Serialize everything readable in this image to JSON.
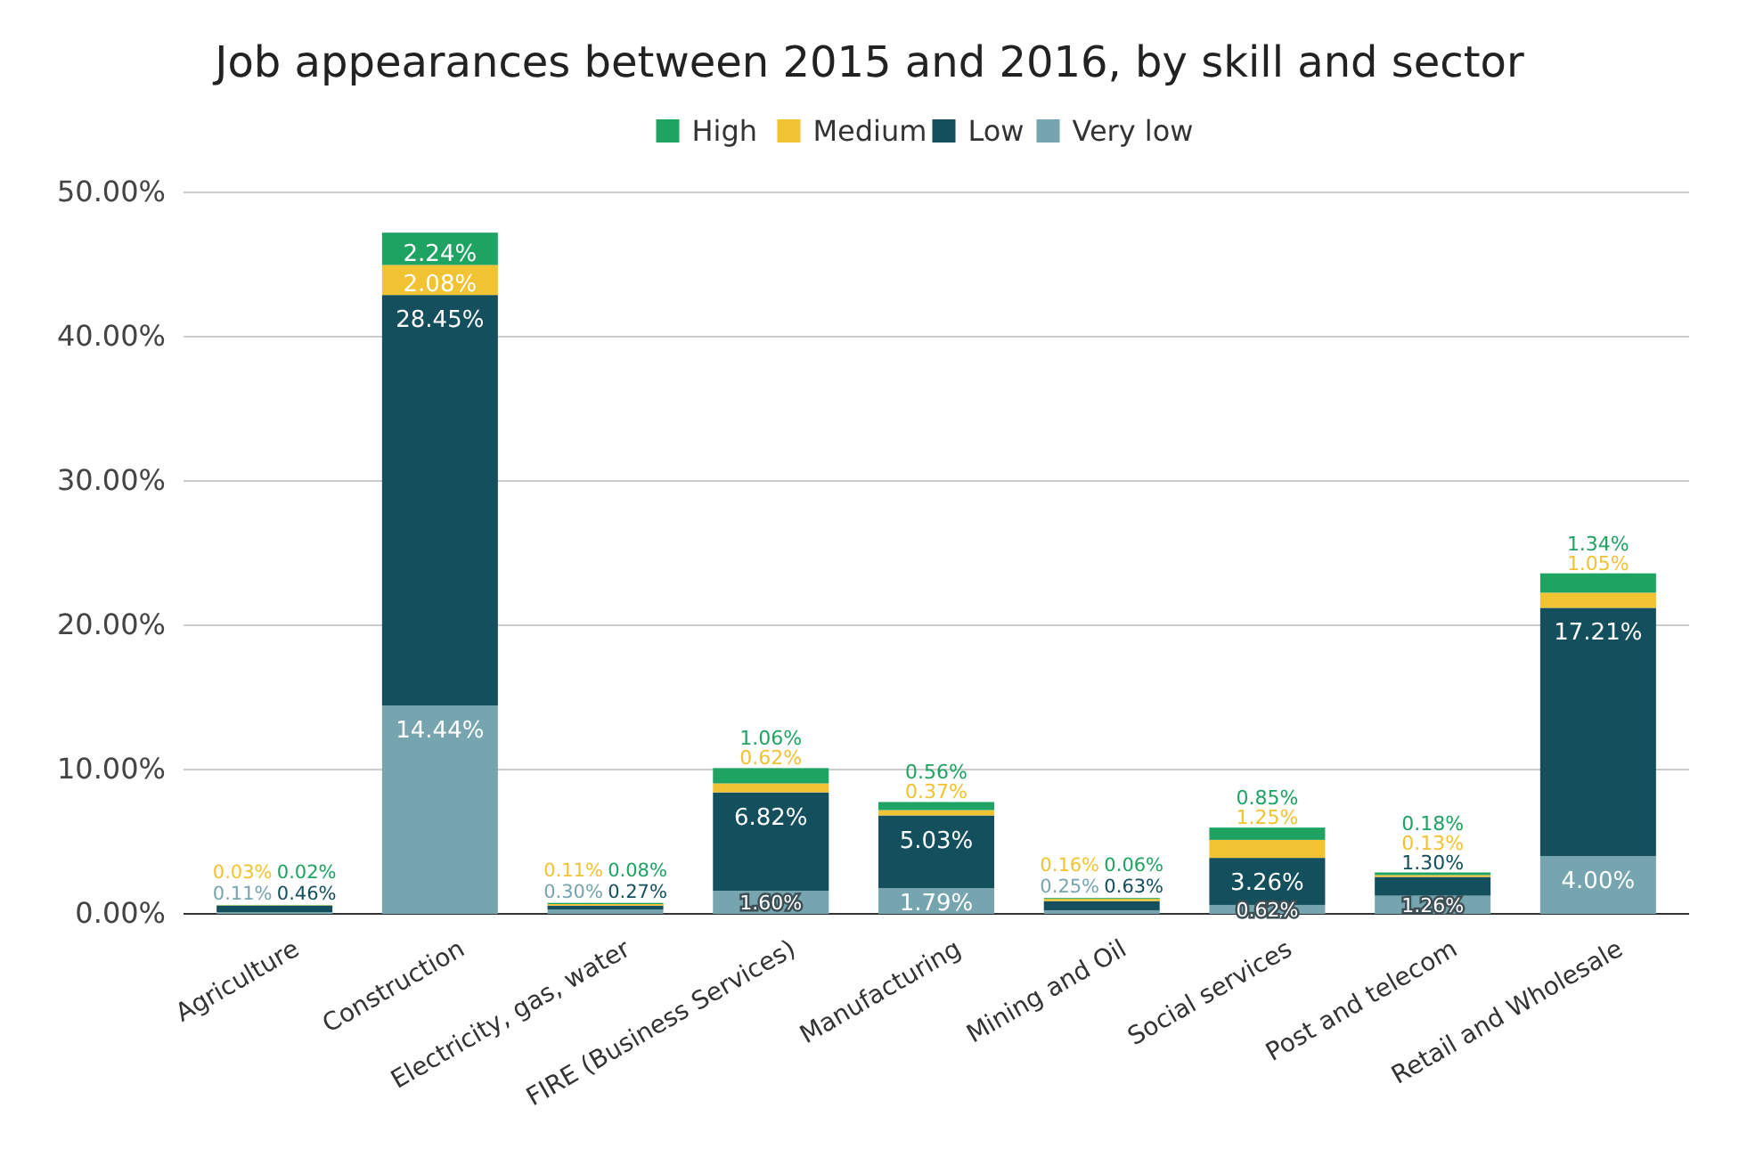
{
  "chart_data": {
    "type": "bar",
    "stacked": true,
    "title": "Job appearances between 2015 and 2016, by skill and sector",
    "categories": [
      "Agriculture",
      "Construction",
      "Electricity, gas, water",
      "FIRE (Business Services)",
      "Manufacturing",
      "Mining and Oil",
      "Social services",
      "Post and telecom",
      "Retail and Wholesale"
    ],
    "series": [
      {
        "name": "Very low",
        "color": "#76a5af",
        "values": [
          0.11,
          14.44,
          0.3,
          1.6,
          1.79,
          0.25,
          0.62,
          1.26,
          4.0
        ],
        "value_labels": [
          "0.11%",
          "14.44%",
          "0.30%",
          "1.60%",
          "1.79%",
          "0.25%",
          "0.62%",
          "1.26%",
          "4.00%"
        ]
      },
      {
        "name": "Low",
        "color": "#134f5c",
        "values": [
          0.46,
          28.45,
          0.27,
          6.82,
          5.03,
          0.63,
          3.26,
          1.3,
          17.21
        ],
        "value_labels": [
          "0.46%",
          "28.45%",
          "0.27%",
          "6.82%",
          "5.03%",
          "0.63%",
          "3.26%",
          "1.30%",
          "17.21%"
        ]
      },
      {
        "name": "Medium",
        "color": "#f1c232",
        "values": [
          0.03,
          2.08,
          0.11,
          0.62,
          0.37,
          0.16,
          1.25,
          0.13,
          1.05
        ],
        "value_labels": [
          "0.03%",
          "2.08%",
          "0.11%",
          "0.62%",
          "0.37%",
          "0.16%",
          "1.25%",
          "0.13%",
          "1.05%"
        ]
      },
      {
        "name": "High",
        "color": "#1ea362",
        "values": [
          0.02,
          2.24,
          0.08,
          1.06,
          0.56,
          0.06,
          0.85,
          0.18,
          1.34
        ],
        "value_labels": [
          "0.02%",
          "2.24%",
          "0.08%",
          "1.06%",
          "0.56%",
          "0.06%",
          "0.85%",
          "0.18%",
          "1.34%"
        ]
      }
    ],
    "ylim": [
      0,
      50
    ],
    "yticks": [
      {
        "value": 0,
        "label": "0.00%"
      },
      {
        "value": 10,
        "label": "10.00%"
      },
      {
        "value": 20,
        "label": "20.00%"
      },
      {
        "value": 30,
        "label": "30.00%"
      },
      {
        "value": 40,
        "label": "40.00%"
      },
      {
        "value": 50,
        "label": "50.00%"
      }
    ],
    "grid": "y",
    "legend": "top"
  }
}
